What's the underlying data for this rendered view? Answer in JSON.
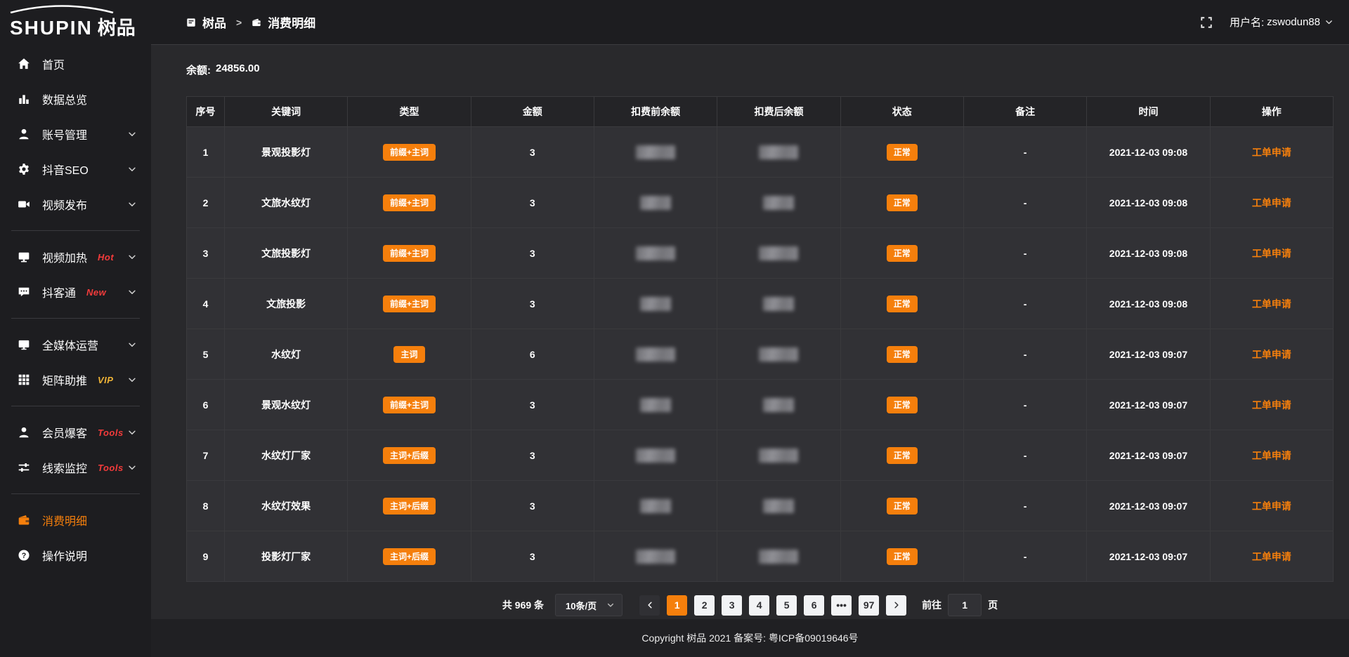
{
  "logo": {
    "brand_en": "SHUPIN",
    "brand_cn": "树品"
  },
  "topbar": {
    "breadcrumb": [
      {
        "label": "树品"
      },
      {
        "label": "消费明细"
      }
    ],
    "separator": ">",
    "username_label": "用户名:",
    "username": "zswodun88"
  },
  "sidebar": {
    "items": [
      {
        "id": "home",
        "label": "首页",
        "icon": "home-icon"
      },
      {
        "id": "data-overview",
        "label": "数据总览",
        "icon": "chart-icon"
      },
      {
        "id": "account-manage",
        "label": "账号管理",
        "icon": "user-icon",
        "chevron": true
      },
      {
        "id": "douyin-seo",
        "label": "抖音SEO",
        "icon": "gear-icon",
        "chevron": true
      },
      {
        "id": "video-publish",
        "label": "视频发布",
        "icon": "video-icon",
        "chevron": true,
        "divider_after": true
      },
      {
        "id": "video-heat",
        "label": "视频加热",
        "icon": "screen-icon",
        "chevron": true,
        "badge": "Hot",
        "badge_color": "#f43b3b"
      },
      {
        "id": "douketong",
        "label": "抖客通",
        "icon": "chat-icon",
        "chevron": true,
        "badge": "New",
        "badge_color": "#f43b3b",
        "divider_after": true
      },
      {
        "id": "media-operation",
        "label": "全媒体运营",
        "icon": "monitor-icon",
        "chevron": true
      },
      {
        "id": "matrix-boost",
        "label": "矩阵助推",
        "icon": "grid-icon",
        "chevron": true,
        "badge": "VIP",
        "badge_color": "#efb336",
        "divider_after": true
      },
      {
        "id": "member-burst",
        "label": "会员爆客",
        "icon": "user-icon",
        "chevron": true,
        "badge": "Tools",
        "badge_color": "#f43b3b"
      },
      {
        "id": "clue-monitor",
        "label": "线索监控",
        "icon": "sliders-icon",
        "chevron": true,
        "badge": "Tools",
        "badge_color": "#f43b3b",
        "divider_after": true
      },
      {
        "id": "consume-detail",
        "label": "消费明细",
        "icon": "wallet-icon",
        "active": true
      },
      {
        "id": "operation-guide",
        "label": "操作说明",
        "icon": "question-icon"
      }
    ]
  },
  "main": {
    "balance_label": "余额:",
    "balance_value": "24856.00",
    "table": {
      "headers": [
        "序号",
        "关键词",
        "类型",
        "金额",
        "扣费前余额",
        "扣费后余额",
        "状态",
        "备注",
        "时间",
        "操作"
      ],
      "masked_columns": [
        "扣费前余额",
        "扣费后余额"
      ],
      "rows": [
        {
          "no": "1",
          "keyword": "景观投影灯",
          "type": "前缀+主词",
          "amount": "3",
          "status": "正常",
          "remark": "-",
          "time": "2021-12-03 09:08",
          "action": "工单申请"
        },
        {
          "no": "2",
          "keyword": "文旅水纹灯",
          "type": "前缀+主词",
          "amount": "3",
          "status": "正常",
          "remark": "-",
          "time": "2021-12-03 09:08",
          "action": "工单申请"
        },
        {
          "no": "3",
          "keyword": "文旅投影灯",
          "type": "前缀+主词",
          "amount": "3",
          "status": "正常",
          "remark": "-",
          "time": "2021-12-03 09:08",
          "action": "工单申请"
        },
        {
          "no": "4",
          "keyword": "文旅投影",
          "type": "前缀+主词",
          "amount": "3",
          "status": "正常",
          "remark": "-",
          "time": "2021-12-03 09:08",
          "action": "工单申请"
        },
        {
          "no": "5",
          "keyword": "水纹灯",
          "type": "主词",
          "amount": "6",
          "status": "正常",
          "remark": "-",
          "time": "2021-12-03 09:07",
          "action": "工单申请"
        },
        {
          "no": "6",
          "keyword": "景观水纹灯",
          "type": "前缀+主词",
          "amount": "3",
          "status": "正常",
          "remark": "-",
          "time": "2021-12-03 09:07",
          "action": "工单申请"
        },
        {
          "no": "7",
          "keyword": "水纹灯厂家",
          "type": "主词+后缀",
          "amount": "3",
          "status": "正常",
          "remark": "-",
          "time": "2021-12-03 09:07",
          "action": "工单申请"
        },
        {
          "no": "8",
          "keyword": "水纹灯效果",
          "type": "主词+后缀",
          "amount": "3",
          "status": "正常",
          "remark": "-",
          "time": "2021-12-03 09:07",
          "action": "工单申请"
        },
        {
          "no": "9",
          "keyword": "投影灯厂家",
          "type": "主词+后缀",
          "amount": "3",
          "status": "正常",
          "remark": "-",
          "time": "2021-12-03 09:07",
          "action": "工单申请"
        }
      ]
    },
    "pagination": {
      "total": "共 969 条",
      "page_size": "10条/页",
      "pages": [
        "1",
        "2",
        "3",
        "4",
        "5",
        "6",
        "•••",
        "97"
      ],
      "active_page": "1",
      "goto_label": "前往",
      "goto_value": "1",
      "goto_suffix": "页"
    }
  },
  "footer": {
    "copyright": "Copyright 树品 2021 备案号: 粤ICP备09019646号"
  },
  "colors": {
    "accent_orange": "#f57f0c",
    "hot_red": "#f43b3b",
    "vip_gold": "#efb336",
    "sidebar_bg": "#1d1d20",
    "page_bg": "#29292c",
    "row_bg": "#313135",
    "header_row_bg": "#242427"
  }
}
